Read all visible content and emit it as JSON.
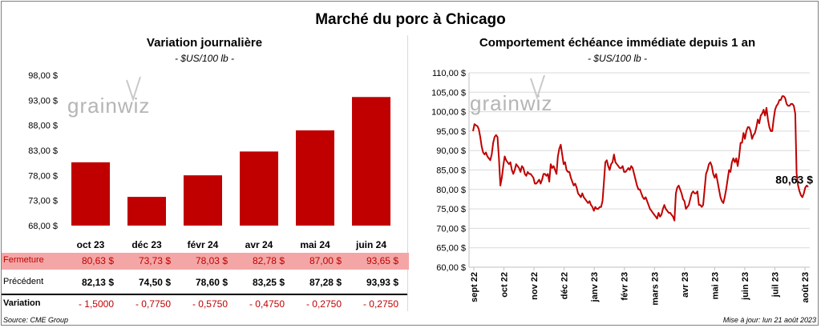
{
  "title": "Marché du porc à Chicago",
  "left": {
    "title": "Variation  journalière",
    "unit": "- $US/100 lb -"
  },
  "right": {
    "title": "Comportement  échéance immédiate depuis 1 an",
    "unit": "- $US/100 lb -",
    "last_label": "80,63 $"
  },
  "watermark": "grainwiz",
  "table": {
    "rows": [
      {
        "label": "Fermeture",
        "values": [
          "80,63  $",
          "73,73  $",
          "78,03  $",
          "82,78  $",
          "87,00  $",
          "93,65  $"
        ]
      },
      {
        "label": "Précédent",
        "values": [
          "82,13  $",
          "74,50  $",
          "78,60  $",
          "83,25  $",
          "87,28  $",
          "93,93  $"
        ]
      },
      {
        "label": "Variation",
        "values": [
          "- 1,5000",
          "- 0,7750",
          "- 0,5750",
          "- 0,4750",
          "- 0,2750",
          "- 0,2750"
        ]
      }
    ]
  },
  "source": "Source: CME Group",
  "updated": "Mise à jour: lun 21 août 2023",
  "colors": {
    "bar": "#c00000",
    "line": "#c00000",
    "highlight_row": "#f4a6a6",
    "negative": "#c00000",
    "grid": "#d9d9d9"
  },
  "chart_data": [
    {
      "type": "bar",
      "categories": [
        "oct 23",
        "déc 23",
        "févr 24",
        "avr 24",
        "mai 24",
        "juin 24"
      ],
      "values": [
        80.63,
        73.73,
        78.03,
        82.78,
        87.0,
        93.65
      ],
      "ylim": [
        68,
        98
      ],
      "yticks": [
        "68,00 $",
        "73,00 $",
        "78,00 $",
        "83,00 $",
        "88,00 $",
        "93,00 $",
        "98,00 $"
      ],
      "ytick_values": [
        68,
        73,
        78,
        83,
        88,
        93,
        98
      ],
      "grid": false
    },
    {
      "type": "line",
      "ylim": [
        60,
        110
      ],
      "yticks": [
        "60,00 $",
        "65,00 $",
        "70,00 $",
        "75,00 $",
        "80,00 $",
        "85,00 $",
        "90,00 $",
        "95,00 $",
        "100,00 $",
        "105,00 $",
        "110,00 $"
      ],
      "ytick_values": [
        60,
        65,
        70,
        75,
        80,
        85,
        90,
        95,
        100,
        105,
        110
      ],
      "xticks": [
        "sept 22",
        "oct 22",
        "nov 22",
        "déc 22",
        "janv 23",
        "févr 23",
        "mars 23",
        "avr 23",
        "mai 23",
        "juin 23",
        "juil 23",
        "août 23"
      ],
      "grid": true,
      "series": [
        {
          "values": [
            95,
            96.8,
            96.5,
            96.3,
            95.5,
            93.5,
            91,
            89.5,
            89,
            89.5,
            88.5,
            88,
            87.5,
            89,
            92,
            93.5,
            94,
            93.5,
            88,
            81,
            83,
            86,
            88.5,
            87.5,
            87,
            86.5,
            87,
            85,
            84,
            85,
            86.5,
            86,
            85.5,
            84.5,
            86,
            85.5,
            84,
            83.5,
            84.5,
            84,
            84,
            83.5,
            83,
            81.5,
            81.5,
            82,
            82.5,
            81.5,
            82.5,
            84,
            84,
            83.5,
            84,
            82,
            86.5,
            85.5,
            86,
            85,
            84,
            88.5,
            90.5,
            91.5,
            89,
            86.5,
            87,
            85,
            84.5,
            84.5,
            83,
            82,
            81,
            81.5,
            80.5,
            79,
            78.5,
            78,
            79,
            78,
            77.5,
            77,
            76.5,
            77,
            76,
            75.5,
            74.5,
            75.5,
            75,
            75,
            75.5,
            75.5,
            77,
            82,
            87,
            87.5,
            86,
            85,
            86.5,
            87,
            89,
            87,
            86.5,
            86,
            85.5,
            85.5,
            86,
            84.5,
            84.5,
            85,
            85.5,
            85,
            86,
            85.5,
            84,
            82.5,
            81,
            80,
            80,
            79,
            78,
            77.5,
            78,
            77,
            76,
            75,
            74.5,
            74,
            73.5,
            73,
            72.5,
            74,
            73,
            73.5,
            75,
            76,
            75,
            74.5,
            74,
            74,
            73.5,
            73,
            72,
            79,
            80.5,
            81,
            80,
            79,
            77.5,
            77,
            75,
            75.5,
            76,
            77.5,
            79,
            79.5,
            79,
            79,
            79.5,
            76,
            76,
            75.5,
            76,
            80,
            84,
            85,
            86.5,
            87,
            86,
            84,
            83,
            84,
            82,
            80,
            78,
            77,
            76.5,
            78,
            80,
            82.5,
            85,
            84.5,
            87,
            88,
            87,
            88,
            86,
            88.5,
            92,
            92,
            94.5,
            93,
            95,
            96,
            96,
            95,
            93,
            94,
            94.5,
            96,
            98,
            97,
            99,
            99.5,
            100.5,
            99,
            101,
            98,
            96,
            95,
            95,
            98,
            100.5,
            101.5,
            102,
            103,
            103,
            104,
            104,
            103.5,
            102,
            101.5,
            101.5,
            102,
            102,
            101.5,
            99.5,
            84,
            81,
            79.5,
            78.5,
            78,
            79,
            80.5,
            81,
            80.63
          ]
        }
      ],
      "last_value": 80.63
    }
  ]
}
